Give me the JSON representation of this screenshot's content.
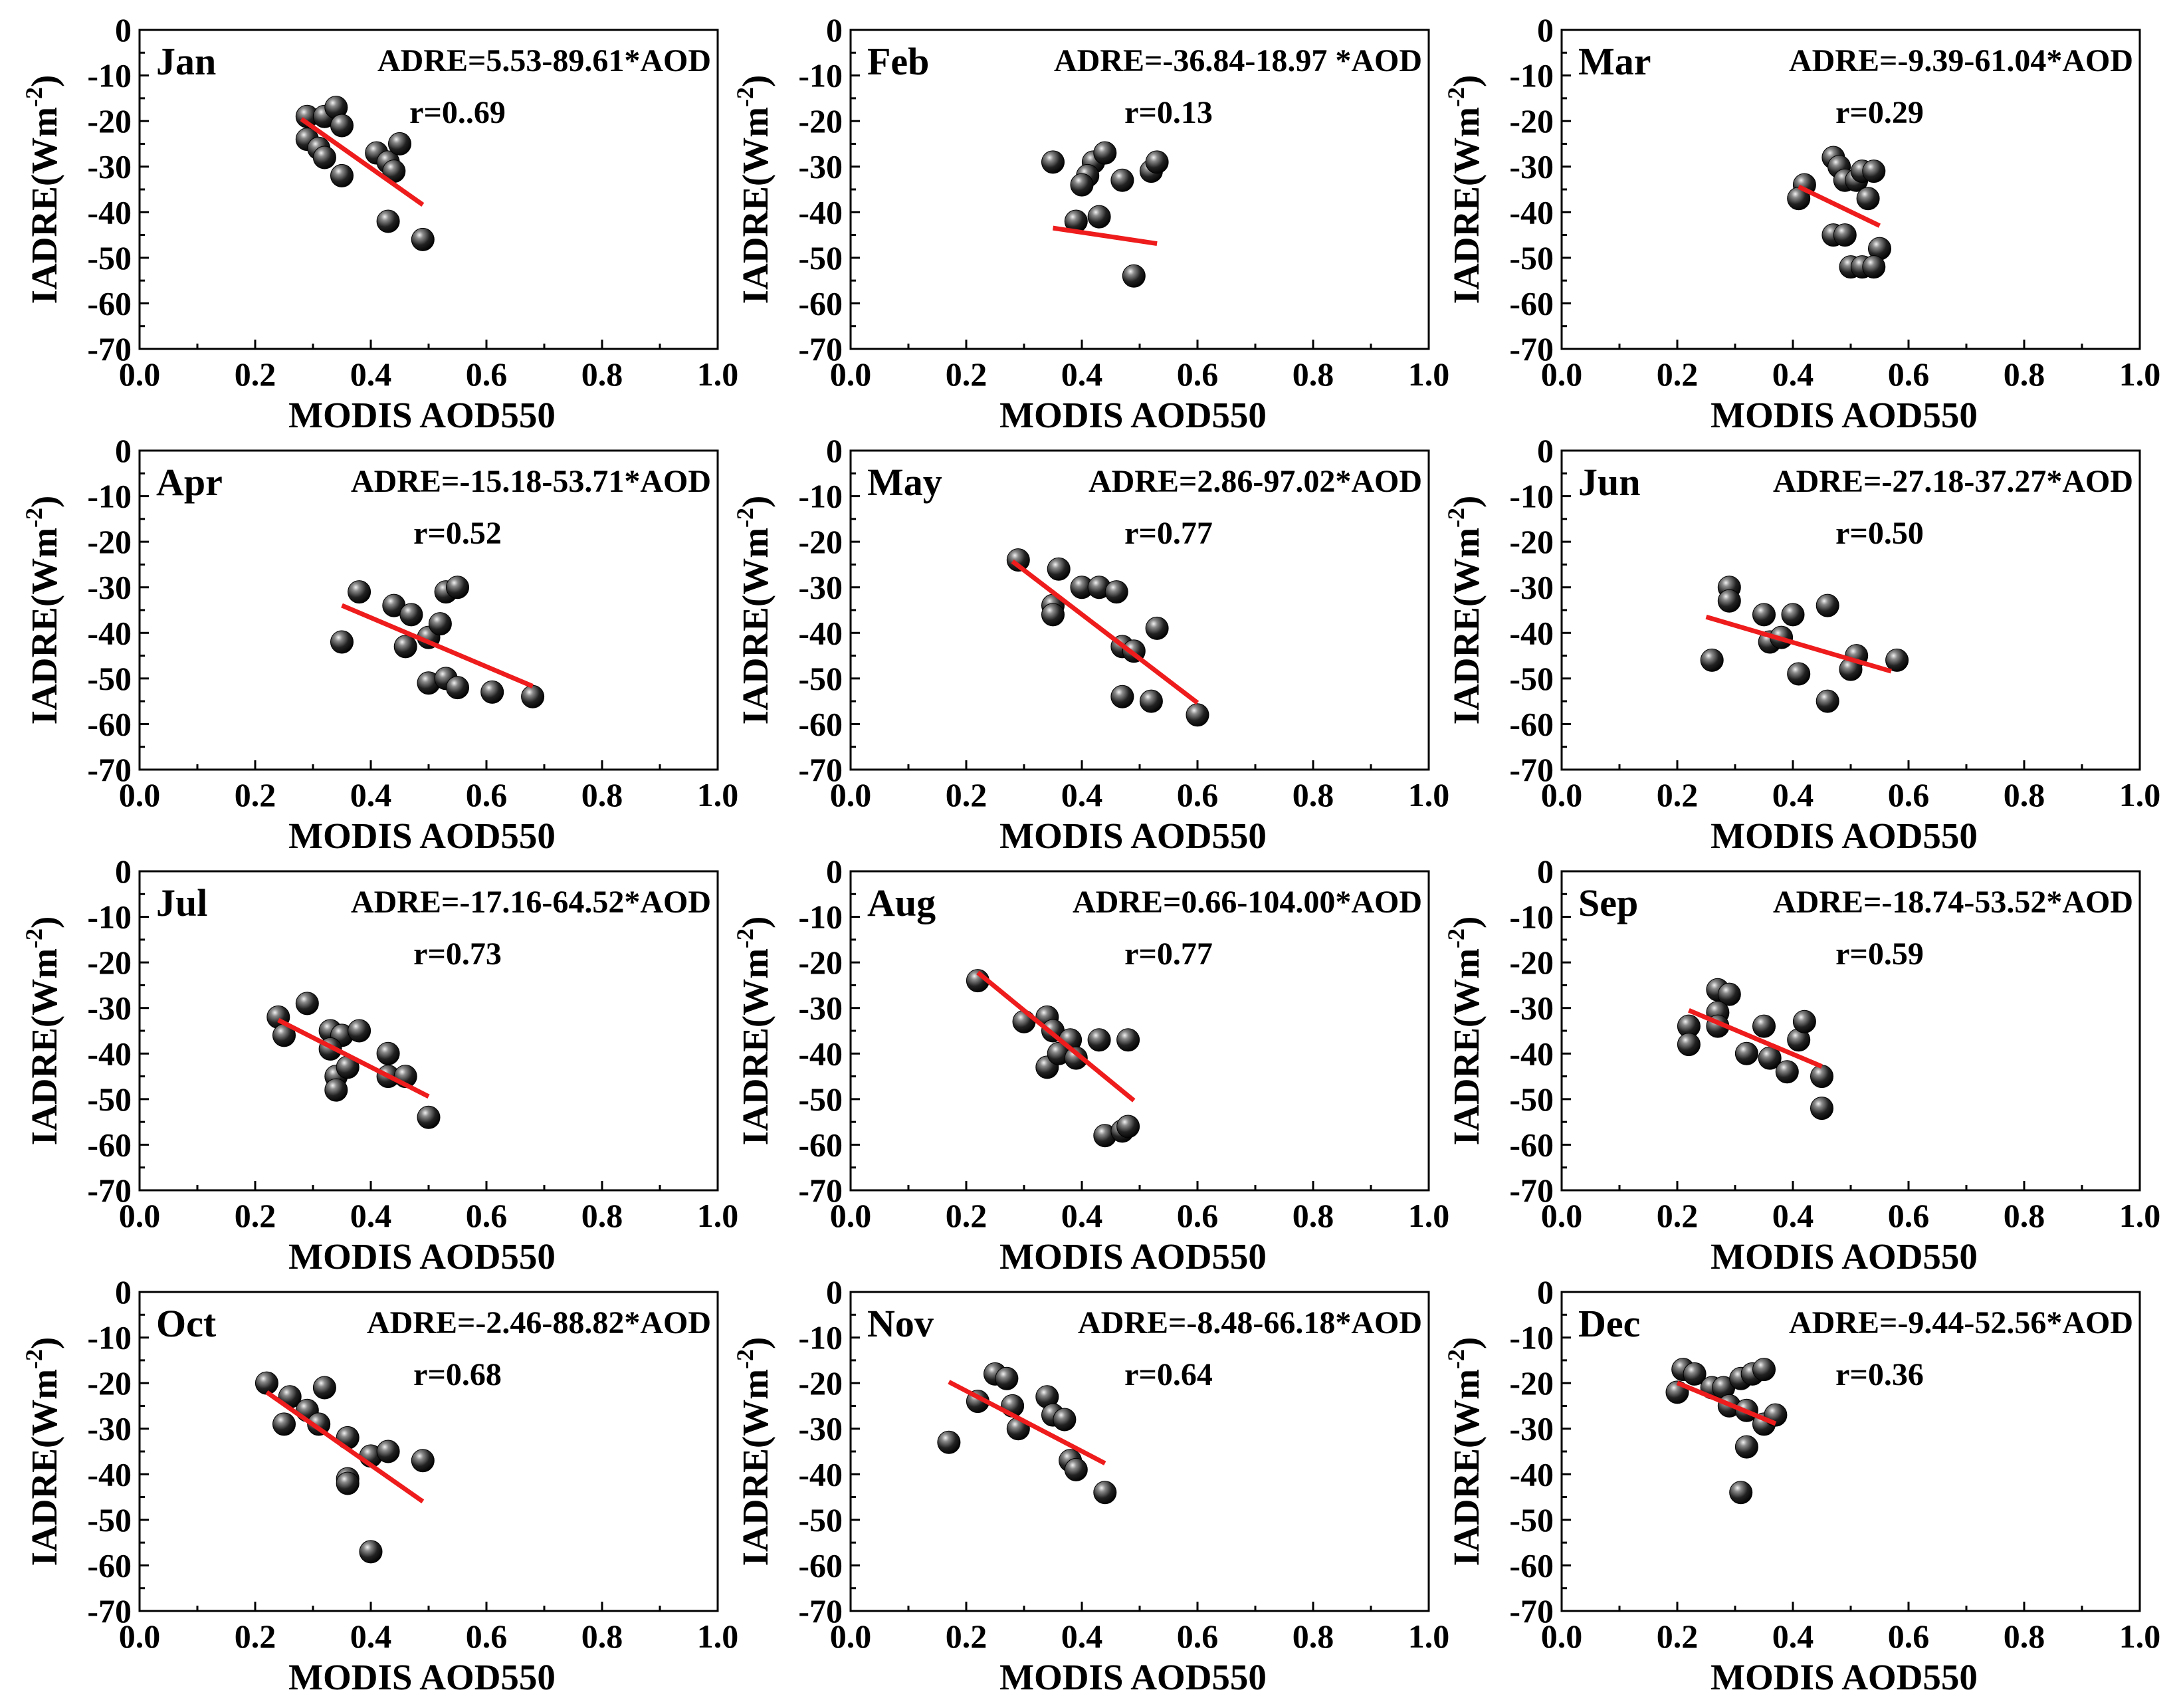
{
  "figure": {
    "x_axis_label": "MODIS AOD550",
    "y_axis_label_main": "IADRE(Wm",
    "y_axis_label_sup": "-2",
    "y_axis_label_close": ")"
  },
  "colors": {
    "points": "#111111",
    "fit_line": "#ee1c1c",
    "axes": "#000000"
  },
  "chart_data": [
    {
      "type": "scatter",
      "title": "Jan",
      "equation": "ADRE=5.53-89.61*AOD",
      "r_label": "r=0..69",
      "slope": -89.61,
      "intercept": 5.53,
      "fit_x": [
        0.28,
        0.49
      ],
      "xlim": [
        0,
        1
      ],
      "ylim": [
        -70,
        0
      ],
      "xticks": [
        "0.0",
        "0.2",
        "0.4",
        "0.6",
        "0.8",
        "1.0"
      ],
      "yticks": [
        "0",
        "-10",
        "-20",
        "-30",
        "-40",
        "-50",
        "-60",
        "-70"
      ],
      "points": [
        [
          0.29,
          -19
        ],
        [
          0.32,
          -19
        ],
        [
          0.34,
          -17
        ],
        [
          0.35,
          -21
        ],
        [
          0.29,
          -24
        ],
        [
          0.31,
          -26
        ],
        [
          0.32,
          -28
        ],
        [
          0.35,
          -32
        ],
        [
          0.41,
          -27
        ],
        [
          0.43,
          -29
        ],
        [
          0.45,
          -25
        ],
        [
          0.44,
          -31
        ],
        [
          0.43,
          -42
        ],
        [
          0.49,
          -46
        ]
      ]
    },
    {
      "type": "scatter",
      "title": "Feb",
      "equation": "ADRE=-36.84-18.97 *AOD",
      "r_label": "r=0.13",
      "slope": -18.97,
      "intercept": -36.84,
      "fit_x": [
        0.35,
        0.53
      ],
      "xlim": [
        0,
        1
      ],
      "ylim": [
        -70,
        0
      ],
      "xticks": [
        "0.0",
        "0.2",
        "0.4",
        "0.6",
        "0.8",
        "1.0"
      ],
      "yticks": [
        "0",
        "-10",
        "-20",
        "-30",
        "-40",
        "-50",
        "-60",
        "-70"
      ],
      "points": [
        [
          0.35,
          -29
        ],
        [
          0.42,
          -29
        ],
        [
          0.44,
          -27
        ],
        [
          0.41,
          -32
        ],
        [
          0.4,
          -34
        ],
        [
          0.47,
          -33
        ],
        [
          0.52,
          -31
        ],
        [
          0.53,
          -29
        ],
        [
          0.39,
          -42
        ],
        [
          0.43,
          -41
        ],
        [
          0.49,
          -54
        ]
      ]
    },
    {
      "type": "scatter",
      "title": "Mar",
      "equation": "ADRE=-9.39-61.04*AOD",
      "r_label": "r=0.29",
      "slope": -61.04,
      "intercept": -9.39,
      "fit_x": [
        0.41,
        0.55
      ],
      "xlim": [
        0,
        1
      ],
      "ylim": [
        -70,
        0
      ],
      "xticks": [
        "0.0",
        "0.2",
        "0.4",
        "0.6",
        "0.8",
        "1.0"
      ],
      "yticks": [
        "0",
        "-10",
        "-20",
        "-30",
        "-40",
        "-50",
        "-60",
        "-70"
      ],
      "points": [
        [
          0.42,
          -34
        ],
        [
          0.41,
          -37
        ],
        [
          0.47,
          -28
        ],
        [
          0.48,
          -30
        ],
        [
          0.49,
          -33
        ],
        [
          0.51,
          -33
        ],
        [
          0.52,
          -31
        ],
        [
          0.54,
          -31
        ],
        [
          0.53,
          -37
        ],
        [
          0.47,
          -45
        ],
        [
          0.49,
          -45
        ],
        [
          0.55,
          -48
        ],
        [
          0.5,
          -52
        ],
        [
          0.52,
          -52
        ],
        [
          0.54,
          -52
        ]
      ]
    },
    {
      "type": "scatter",
      "title": "Apr",
      "equation": "ADRE=-15.18-53.71*AOD",
      "r_label": "r=0.52",
      "slope": -53.71,
      "intercept": -15.18,
      "fit_x": [
        0.35,
        0.68
      ],
      "xlim": [
        0,
        1
      ],
      "ylim": [
        -70,
        0
      ],
      "xticks": [
        "0.0",
        "0.2",
        "0.4",
        "0.6",
        "0.8",
        "1.0"
      ],
      "yticks": [
        "0",
        "-10",
        "-20",
        "-30",
        "-40",
        "-50",
        "-60",
        "-70"
      ],
      "points": [
        [
          0.35,
          -42
        ],
        [
          0.38,
          -31
        ],
        [
          0.44,
          -34
        ],
        [
          0.47,
          -36
        ],
        [
          0.46,
          -43
        ],
        [
          0.5,
          -41
        ],
        [
          0.52,
          -38
        ],
        [
          0.53,
          -31
        ],
        [
          0.55,
          -30
        ],
        [
          0.5,
          -51
        ],
        [
          0.53,
          -50
        ],
        [
          0.55,
          -52
        ],
        [
          0.61,
          -53
        ],
        [
          0.68,
          -54
        ]
      ]
    },
    {
      "type": "scatter",
      "title": "May",
      "equation": "ADRE=2.86-97.02*AOD",
      "r_label": "r=0.77",
      "slope": -97.02,
      "intercept": 2.86,
      "fit_x": [
        0.28,
        0.6
      ],
      "xlim": [
        0,
        1
      ],
      "ylim": [
        -70,
        0
      ],
      "xticks": [
        "0.0",
        "0.2",
        "0.4",
        "0.6",
        "0.8",
        "1.0"
      ],
      "yticks": [
        "0",
        "-10",
        "-20",
        "-30",
        "-40",
        "-50",
        "-60",
        "-70"
      ],
      "points": [
        [
          0.29,
          -24
        ],
        [
          0.36,
          -26
        ],
        [
          0.35,
          -34
        ],
        [
          0.35,
          -36
        ],
        [
          0.4,
          -30
        ],
        [
          0.43,
          -30
        ],
        [
          0.46,
          -31
        ],
        [
          0.47,
          -43
        ],
        [
          0.49,
          -44
        ],
        [
          0.53,
          -39
        ],
        [
          0.47,
          -54
        ],
        [
          0.52,
          -55
        ],
        [
          0.6,
          -58
        ]
      ]
    },
    {
      "type": "scatter",
      "title": "Jun",
      "equation": "ADRE=-27.18-37.27*AOD",
      "r_label": "r=0.50",
      "slope": -37.27,
      "intercept": -27.18,
      "fit_x": [
        0.25,
        0.57
      ],
      "xlim": [
        0,
        1
      ],
      "ylim": [
        -70,
        0
      ],
      "xticks": [
        "0.0",
        "0.2",
        "0.4",
        "0.6",
        "0.8",
        "1.0"
      ],
      "yticks": [
        "0",
        "-10",
        "-20",
        "-30",
        "-40",
        "-50",
        "-60",
        "-70"
      ],
      "points": [
        [
          0.29,
          -30
        ],
        [
          0.29,
          -33
        ],
        [
          0.26,
          -46
        ],
        [
          0.35,
          -36
        ],
        [
          0.36,
          -42
        ],
        [
          0.38,
          -41
        ],
        [
          0.4,
          -36
        ],
        [
          0.46,
          -34
        ],
        [
          0.41,
          -49
        ],
        [
          0.46,
          -55
        ],
        [
          0.51,
          -45
        ],
        [
          0.5,
          -48
        ],
        [
          0.58,
          -46
        ]
      ]
    },
    {
      "type": "scatter",
      "title": "Jul",
      "equation": "ADRE=-17.16-64.52*AOD",
      "r_label": "r=0.73",
      "slope": -64.52,
      "intercept": -17.16,
      "fit_x": [
        0.24,
        0.5
      ],
      "xlim": [
        0,
        1
      ],
      "ylim": [
        -70,
        0
      ],
      "xticks": [
        "0.0",
        "0.2",
        "0.4",
        "0.6",
        "0.8",
        "1.0"
      ],
      "yticks": [
        "0",
        "-10",
        "-20",
        "-30",
        "-40",
        "-50",
        "-60",
        "-70"
      ],
      "points": [
        [
          0.24,
          -32
        ],
        [
          0.25,
          -36
        ],
        [
          0.29,
          -29
        ],
        [
          0.33,
          -35
        ],
        [
          0.35,
          -36
        ],
        [
          0.38,
          -35
        ],
        [
          0.33,
          -39
        ],
        [
          0.34,
          -45
        ],
        [
          0.34,
          -48
        ],
        [
          0.36,
          -43
        ],
        [
          0.43,
          -40
        ],
        [
          0.43,
          -45
        ],
        [
          0.46,
          -45
        ],
        [
          0.5,
          -54
        ]
      ]
    },
    {
      "type": "scatter",
      "title": "Aug",
      "equation": "ADRE=0.66-104.00*AOD",
      "r_label": "r=0.77",
      "slope": -104.0,
      "intercept": 0.66,
      "fit_x": [
        0.22,
        0.49
      ],
      "xlim": [
        0,
        1
      ],
      "ylim": [
        -70,
        0
      ],
      "xticks": [
        "0.0",
        "0.2",
        "0.4",
        "0.6",
        "0.8",
        "1.0"
      ],
      "yticks": [
        "0",
        "-10",
        "-20",
        "-30",
        "-40",
        "-50",
        "-60",
        "-70"
      ],
      "points": [
        [
          0.22,
          -24
        ],
        [
          0.3,
          -33
        ],
        [
          0.34,
          -32
        ],
        [
          0.35,
          -35
        ],
        [
          0.38,
          -37
        ],
        [
          0.34,
          -43
        ],
        [
          0.36,
          -40
        ],
        [
          0.39,
          -41
        ],
        [
          0.43,
          -37
        ],
        [
          0.48,
          -37
        ],
        [
          0.44,
          -58
        ],
        [
          0.47,
          -57
        ],
        [
          0.48,
          -56
        ]
      ]
    },
    {
      "type": "scatter",
      "title": "Sep",
      "equation": "ADRE=-18.74-53.52*AOD",
      "r_label": "r=0.59",
      "slope": -53.52,
      "intercept": -18.74,
      "fit_x": [
        0.22,
        0.45
      ],
      "xlim": [
        0,
        1
      ],
      "ylim": [
        -70,
        0
      ],
      "xticks": [
        "0.0",
        "0.2",
        "0.4",
        "0.6",
        "0.8",
        "1.0"
      ],
      "yticks": [
        "0",
        "-10",
        "-20",
        "-30",
        "-40",
        "-50",
        "-60",
        "-70"
      ],
      "points": [
        [
          0.22,
          -34
        ],
        [
          0.22,
          -38
        ],
        [
          0.27,
          -26
        ],
        [
          0.29,
          -27
        ],
        [
          0.27,
          -31
        ],
        [
          0.27,
          -34
        ],
        [
          0.32,
          -40
        ],
        [
          0.35,
          -34
        ],
        [
          0.36,
          -41
        ],
        [
          0.39,
          -44
        ],
        [
          0.41,
          -37
        ],
        [
          0.42,
          -33
        ],
        [
          0.45,
          -45
        ],
        [
          0.45,
          -52
        ]
      ]
    },
    {
      "type": "scatter",
      "title": "Oct",
      "equation": "ADRE=-2.46-88.82*AOD",
      "r_label": "r=0.68",
      "slope": -88.82,
      "intercept": -2.46,
      "fit_x": [
        0.22,
        0.49
      ],
      "xlim": [
        0,
        1
      ],
      "ylim": [
        -70,
        0
      ],
      "xticks": [
        "0.0",
        "0.2",
        "0.4",
        "0.6",
        "0.8",
        "1.0"
      ],
      "yticks": [
        "0",
        "-10",
        "-20",
        "-30",
        "-40",
        "-50",
        "-60",
        "-70"
      ],
      "points": [
        [
          0.22,
          -20
        ],
        [
          0.26,
          -23
        ],
        [
          0.25,
          -29
        ],
        [
          0.29,
          -26
        ],
        [
          0.32,
          -21
        ],
        [
          0.31,
          -29
        ],
        [
          0.36,
          -32
        ],
        [
          0.36,
          -41
        ],
        [
          0.36,
          -42
        ],
        [
          0.4,
          -36
        ],
        [
          0.43,
          -35
        ],
        [
          0.49,
          -37
        ],
        [
          0.4,
          -57
        ]
      ]
    },
    {
      "type": "scatter",
      "title": "Nov",
      "equation": "ADRE=-8.48-66.18*AOD",
      "r_label": "r=0.64",
      "slope": -66.18,
      "intercept": -8.48,
      "fit_x": [
        0.17,
        0.44
      ],
      "xlim": [
        0,
        1
      ],
      "ylim": [
        -70,
        0
      ],
      "xticks": [
        "0.0",
        "0.2",
        "0.4",
        "0.6",
        "0.8",
        "1.0"
      ],
      "yticks": [
        "0",
        "-10",
        "-20",
        "-30",
        "-40",
        "-50",
        "-60",
        "-70"
      ],
      "points": [
        [
          0.17,
          -33
        ],
        [
          0.22,
          -24
        ],
        [
          0.25,
          -18
        ],
        [
          0.27,
          -19
        ],
        [
          0.28,
          -25
        ],
        [
          0.29,
          -30
        ],
        [
          0.34,
          -23
        ],
        [
          0.35,
          -27
        ],
        [
          0.37,
          -28
        ],
        [
          0.38,
          -37
        ],
        [
          0.39,
          -39
        ],
        [
          0.44,
          -44
        ]
      ]
    },
    {
      "type": "scatter",
      "title": "Dec",
      "equation": "ADRE=-9.44-52.56*AOD",
      "r_label": "r=0.36",
      "slope": -52.56,
      "intercept": -9.44,
      "fit_x": [
        0.2,
        0.37
      ],
      "xlim": [
        0,
        1
      ],
      "ylim": [
        -70,
        0
      ],
      "xticks": [
        "0.0",
        "0.2",
        "0.4",
        "0.6",
        "0.8",
        "1.0"
      ],
      "yticks": [
        "0",
        "-10",
        "-20",
        "-30",
        "-40",
        "-50",
        "-60",
        "-70"
      ],
      "points": [
        [
          0.2,
          -22
        ],
        [
          0.21,
          -17
        ],
        [
          0.23,
          -18
        ],
        [
          0.26,
          -21
        ],
        [
          0.28,
          -21
        ],
        [
          0.29,
          -25
        ],
        [
          0.31,
          -19
        ],
        [
          0.32,
          -26
        ],
        [
          0.33,
          -18
        ],
        [
          0.35,
          -17
        ],
        [
          0.35,
          -29
        ],
        [
          0.37,
          -27
        ],
        [
          0.32,
          -34
        ],
        [
          0.31,
          -44
        ]
      ]
    }
  ]
}
